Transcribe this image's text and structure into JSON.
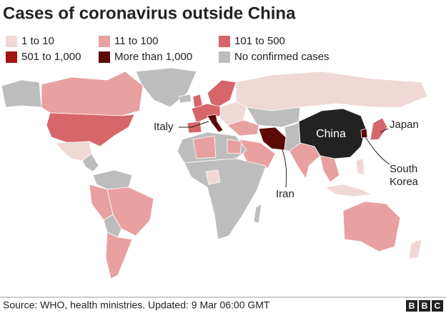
{
  "title": "Cases of coronavirus outside China",
  "legend": [
    {
      "label": "1 to 10",
      "color": "#f0d8d7"
    },
    {
      "label": "11 to 100",
      "color": "#e8a0a0"
    },
    {
      "label": "101 to 500",
      "color": "#d6666a"
    },
    {
      "label": "501 to 1,000",
      "color": "#a3150e"
    },
    {
      "label": "More than 1,000",
      "color": "#5c0a06"
    },
    {
      "label": "No confirmed cases",
      "color": "#bdbdbd"
    }
  ],
  "china": {
    "label": "China",
    "color": "#222222"
  },
  "annotations": {
    "italy": "Italy",
    "iran": "Iran",
    "japan": "Japan",
    "south_korea": [
      "South",
      "Korea"
    ]
  },
  "source": "Source: WHO, health ministries. Updated: 9 Mar 06:00 GMT",
  "logo": [
    "B",
    "B",
    "C"
  ]
}
